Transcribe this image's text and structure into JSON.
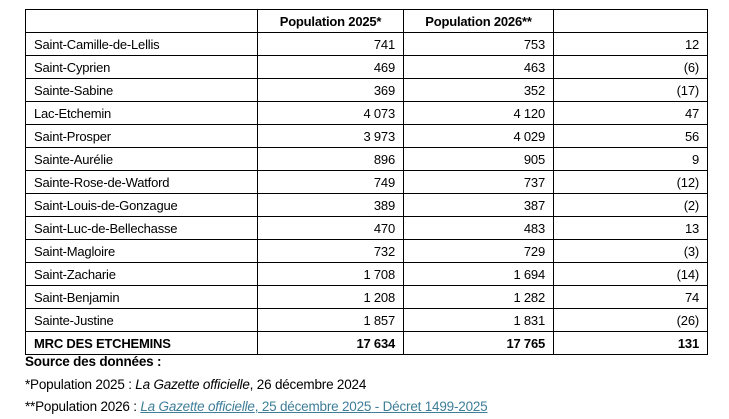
{
  "table": {
    "columns": [
      "",
      "Population 2025*",
      "Population 2026**",
      ""
    ],
    "rows": [
      {
        "name": "Saint-Camille-de-Lellis",
        "pop2025": "741",
        "pop2026": "753",
        "diff": "12"
      },
      {
        "name": "Saint-Cyprien",
        "pop2025": "469",
        "pop2026": "463",
        "diff": "(6)"
      },
      {
        "name": "Sainte-Sabine",
        "pop2025": "369",
        "pop2026": "352",
        "diff": "(17)"
      },
      {
        "name": "Lac-Etchemin",
        "pop2025": "4 073",
        "pop2026": "4 120",
        "diff": "47"
      },
      {
        "name": "Saint-Prosper",
        "pop2025": "3 973",
        "pop2026": "4 029",
        "diff": "56"
      },
      {
        "name": "Sainte-Aurélie",
        "pop2025": "896",
        "pop2026": "905",
        "diff": "9"
      },
      {
        "name": "Sainte-Rose-de-Watford",
        "pop2025": "749",
        "pop2026": "737",
        "diff": "(12)"
      },
      {
        "name": "Saint-Louis-de-Gonzague",
        "pop2025": "389",
        "pop2026": "387",
        "diff": "(2)"
      },
      {
        "name": "Saint-Luc-de-Bellechasse",
        "pop2025": "470",
        "pop2026": "483",
        "diff": "13"
      },
      {
        "name": "Saint-Magloire",
        "pop2025": "732",
        "pop2026": "729",
        "diff": "(3)"
      },
      {
        "name": "Saint-Zacharie",
        "pop2025": "1 708",
        "pop2026": "1 694",
        "diff": "(14)"
      },
      {
        "name": "Saint-Benjamin",
        "pop2025": "1 208",
        "pop2026": "1 282",
        "diff": "74"
      },
      {
        "name": "Sainte-Justine",
        "pop2025": "1 857",
        "pop2026": "1 831",
        "diff": "(26)"
      }
    ],
    "total": {
      "name": "MRC DES ETCHEMINS",
      "pop2025": "17 634",
      "pop2026": "17 765",
      "diff": "131"
    }
  },
  "footer": {
    "source_label": "Source des données :",
    "note1_prefix": "*Population 2025 : ",
    "note1_italic": "La Gazette officielle",
    "note1_suffix": ", 26 décembre 2024",
    "note2_prefix": "**Population 2026 : ",
    "note2_link_italic": "La Gazette officielle",
    "note2_link_rest": ", 25 décembre 2025 - Décret 1499-2025"
  },
  "colors": {
    "link": "#3E7E99",
    "border": "#000000",
    "text": "#000000"
  }
}
